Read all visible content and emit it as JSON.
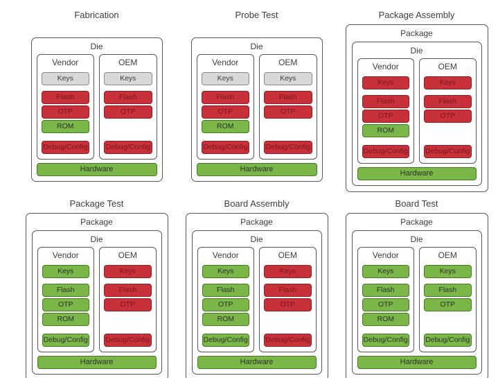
{
  "colors": {
    "red": "#c8303a",
    "green": "#7ab648",
    "gray": "#d8d8d8",
    "box_border": "#565656",
    "text": "#3d3d3d"
  },
  "panels": [
    {
      "title": "Fabrication",
      "package_label": null,
      "die_label": "Die",
      "vendor": {
        "label": "Vendor",
        "keys": {
          "label": "Keys",
          "state": "gray"
        },
        "memory": [
          {
            "label": "Flash",
            "state": "red"
          },
          {
            "label": "OTP",
            "state": "red"
          },
          {
            "label": "ROM",
            "state": "green"
          }
        ],
        "debug": {
          "label": "Debug/Config",
          "state": "red"
        }
      },
      "oem": {
        "label": "OEM",
        "keys": {
          "label": "Keys",
          "state": "gray"
        },
        "memory": [
          {
            "label": "Flash",
            "state": "red"
          },
          {
            "label": "OTP",
            "state": "red"
          }
        ],
        "debug": {
          "label": "Debug/Config",
          "state": "red"
        }
      },
      "hardware": {
        "label": "Hardware",
        "state": "green"
      }
    },
    {
      "title": "Probe Test",
      "package_label": null,
      "die_label": "Die",
      "vendor": {
        "label": "Vendor",
        "keys": {
          "label": "Keys",
          "state": "gray"
        },
        "memory": [
          {
            "label": "Flash",
            "state": "red"
          },
          {
            "label": "OTP",
            "state": "red"
          },
          {
            "label": "ROM",
            "state": "green"
          }
        ],
        "debug": {
          "label": "Debug/Config",
          "state": "red"
        }
      },
      "oem": {
        "label": "OEM",
        "keys": {
          "label": "Keys",
          "state": "gray"
        },
        "memory": [
          {
            "label": "Flash",
            "state": "red"
          },
          {
            "label": "OTP",
            "state": "red"
          }
        ],
        "debug": {
          "label": "Debug/Config",
          "state": "red"
        }
      },
      "hardware": {
        "label": "Hardware",
        "state": "green"
      }
    },
    {
      "title": "Package Assembly",
      "package_label": "Package",
      "die_label": "Die",
      "vendor": {
        "label": "Vendor",
        "keys": {
          "label": "Keys",
          "state": "red"
        },
        "memory": [
          {
            "label": "Flash",
            "state": "red"
          },
          {
            "label": "OTP",
            "state": "red"
          },
          {
            "label": "ROM",
            "state": "green"
          }
        ],
        "debug": {
          "label": "Debug/Config",
          "state": "red"
        }
      },
      "oem": {
        "label": "OEM",
        "keys": {
          "label": "Keys",
          "state": "red"
        },
        "memory": [
          {
            "label": "Flash",
            "state": "red"
          },
          {
            "label": "OTP",
            "state": "red"
          }
        ],
        "debug": {
          "label": "Debug/Config",
          "state": "red"
        }
      },
      "hardware": {
        "label": "Hardware",
        "state": "green"
      }
    },
    {
      "title": "Package Test",
      "package_label": "Package",
      "die_label": "Die",
      "vendor": {
        "label": "Vendor",
        "keys": {
          "label": "Keys",
          "state": "green"
        },
        "memory": [
          {
            "label": "Flash",
            "state": "green"
          },
          {
            "label": "OTP",
            "state": "green"
          },
          {
            "label": "ROM",
            "state": "green"
          }
        ],
        "debug": {
          "label": "Debug/Config",
          "state": "green"
        }
      },
      "oem": {
        "label": "OEM",
        "keys": {
          "label": "Keys",
          "state": "red"
        },
        "memory": [
          {
            "label": "Flash",
            "state": "red"
          },
          {
            "label": "OTP",
            "state": "red"
          }
        ],
        "debug": {
          "label": "Debug/Config",
          "state": "red"
        }
      },
      "hardware": {
        "label": "Hardware",
        "state": "green"
      }
    },
    {
      "title": "Board Assembly",
      "package_label": "Package",
      "die_label": "Die",
      "vendor": {
        "label": "Vendor",
        "keys": {
          "label": "Keys",
          "state": "green"
        },
        "memory": [
          {
            "label": "Flash",
            "state": "green"
          },
          {
            "label": "OTP",
            "state": "green"
          },
          {
            "label": "ROM",
            "state": "green"
          }
        ],
        "debug": {
          "label": "Debug/Config",
          "state": "green"
        }
      },
      "oem": {
        "label": "OEM",
        "keys": {
          "label": "Keys",
          "state": "red"
        },
        "memory": [
          {
            "label": "Flash",
            "state": "red"
          },
          {
            "label": "OTP",
            "state": "red"
          }
        ],
        "debug": {
          "label": "Debug/Config",
          "state": "red"
        }
      },
      "hardware": {
        "label": "Hardware",
        "state": "green"
      }
    },
    {
      "title": "Board Test",
      "package_label": "Package",
      "die_label": "Die",
      "vendor": {
        "label": "Vendor",
        "keys": {
          "label": "Keys",
          "state": "green"
        },
        "memory": [
          {
            "label": "Flash",
            "state": "green"
          },
          {
            "label": "OTP",
            "state": "green"
          },
          {
            "label": "ROM",
            "state": "green"
          }
        ],
        "debug": {
          "label": "Debug/Config",
          "state": "green"
        }
      },
      "oem": {
        "label": "OEM",
        "keys": {
          "label": "Keys",
          "state": "green"
        },
        "memory": [
          {
            "label": "Flash",
            "state": "green"
          },
          {
            "label": "OTP",
            "state": "green"
          }
        ],
        "debug": {
          "label": "Debug/Config",
          "state": "green"
        }
      },
      "hardware": {
        "label": "Hardware",
        "state": "green"
      }
    }
  ]
}
